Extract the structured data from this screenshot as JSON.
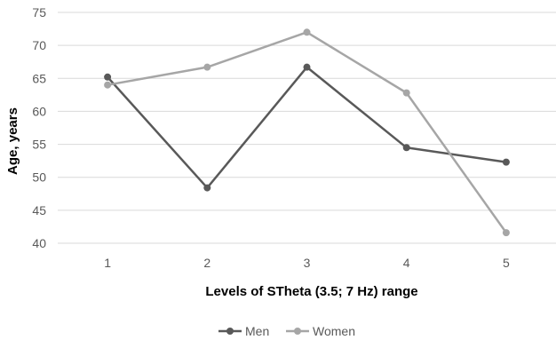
{
  "chart_data": {
    "type": "line",
    "title": "",
    "xlabel": "Levels of STheta (3.5; 7 Hz) range",
    "ylabel": "Age, years",
    "categories": [
      "1",
      "2",
      "3",
      "4",
      "5"
    ],
    "ylim": [
      40,
      75
    ],
    "yticks": [
      "40",
      "45",
      "50",
      "55",
      "60",
      "65",
      "70",
      "75"
    ],
    "grid": true,
    "legend_position": "bottom",
    "series": [
      {
        "name": "Men",
        "color": "#595959",
        "values": [
          65.2,
          48.4,
          66.7,
          54.5,
          52.3
        ]
      },
      {
        "name": "Women",
        "color": "#a6a6a6",
        "values": [
          64.0,
          66.7,
          72.0,
          62.8,
          41.6
        ]
      }
    ]
  }
}
